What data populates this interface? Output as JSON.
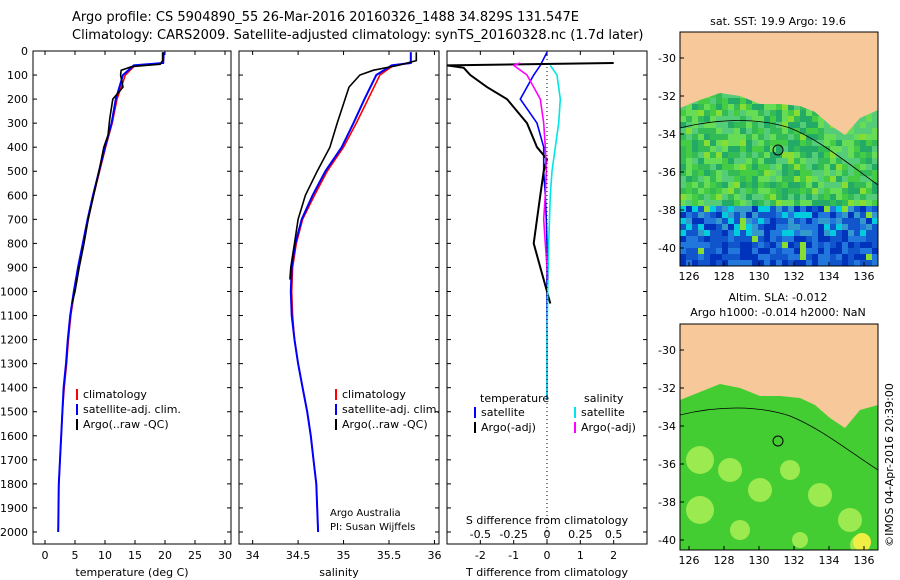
{
  "header": {
    "line1": "Argo profile: CS 5904890_55 26-Mar-2016 20160326_1488 34.829S 131.547E",
    "line2": "Climatology: CARS2009. Satellite-adjusted climatology: synTS_20160328.nc (1.7d later)"
  },
  "right_panels": {
    "top_title": "sat. SST: 19.9 Argo: 19.6",
    "bottom_title_1": "Altim. SLA: -0.012",
    "bottom_title_2": "Argo h1000: -0.014 h2000: NaN",
    "credit": "©IMOS 04-Apr-2016 20:39:00",
    "lon_ticks": [
      "126",
      "128",
      "130",
      "132",
      "134",
      "136"
    ],
    "lat_ticks": [
      "-30",
      "-32",
      "-34",
      "-36",
      "-38",
      "-40"
    ],
    "land_color": "#f7c99a"
  },
  "chart_data": [
    {
      "type": "line",
      "xlabel": "temperature (deg C)",
      "ylim": [
        2050,
        0
      ],
      "xlim": [
        -2,
        31
      ],
      "xticks": [
        0,
        5,
        10,
        15,
        20,
        25,
        30
      ],
      "yticks": [
        0,
        100,
        200,
        300,
        400,
        500,
        600,
        700,
        800,
        900,
        1000,
        1100,
        1200,
        1300,
        1400,
        1500,
        1600,
        1700,
        1800,
        1900,
        2000
      ],
      "legend": [
        "climatology",
        "satellite-adj. clim.",
        "Argo(..raw -QC)"
      ],
      "series": [
        {
          "name": "climatology",
          "color": "#ff0000",
          "x": [
            19.8,
            19.7,
            15.0,
            13.4,
            12.0,
            11.2,
            10.1,
            9.1,
            8.1,
            7.2,
            6.4,
            5.6,
            4.9,
            4.3,
            3.9,
            3.6,
            3.2,
            2.9,
            2.7,
            2.5,
            2.3,
            2.2
          ],
          "y": [
            5,
            50,
            60,
            100,
            200,
            300,
            400,
            500,
            600,
            700,
            800,
            900,
            1000,
            1100,
            1200,
            1300,
            1400,
            1500,
            1600,
            1700,
            1800,
            2000
          ]
        },
        {
          "name": "satellite-adj. clim.",
          "color": "#0000ff",
          "x": [
            19.8,
            19.7,
            14.8,
            13.0,
            11.8,
            11.1,
            10.0,
            9.0,
            8.0,
            7.1,
            6.3,
            5.5,
            4.8,
            4.2,
            3.8,
            3.5,
            3.1,
            2.9,
            2.7,
            2.5,
            2.3,
            2.2
          ],
          "y": [
            5,
            50,
            60,
            100,
            200,
            300,
            400,
            500,
            600,
            700,
            800,
            900,
            1000,
            1100,
            1200,
            1300,
            1400,
            1500,
            1600,
            1700,
            1800,
            2000
          ]
        },
        {
          "name": "Argo(..raw -QC)",
          "color": "#000000",
          "x": [
            19.6,
            19.6,
            19.2,
            14.5,
            12.7,
            12.6,
            13.0,
            11.3,
            10.8,
            10.5,
            9.8,
            9.0,
            8.1,
            7.2,
            6.5,
            5.7,
            5.0,
            4.5
          ],
          "y": [
            5,
            40,
            55,
            65,
            80,
            100,
            150,
            200,
            280,
            350,
            400,
            500,
            600,
            700,
            800,
            900,
            1000,
            1050
          ]
        }
      ]
    },
    {
      "type": "line",
      "xlabel": "salinity",
      "ylim": [
        2050,
        0
      ],
      "xlim": [
        33.85,
        36.05
      ],
      "xticks": [
        34,
        34.5,
        35,
        35.5,
        36
      ],
      "xtick_labels": [
        "34",
        "34.5",
        "35",
        "35.5",
        "36"
      ],
      "legend": [
        "climatology",
        "satellite-adj. clim.",
        "Argo(..raw -QC)"
      ],
      "series": [
        {
          "name": "climatology",
          "color": "#ff0000",
          "x": [
            35.74,
            35.74,
            35.55,
            35.4,
            35.27,
            35.14,
            35.0,
            34.82,
            34.68,
            34.55,
            34.48,
            34.44,
            34.43,
            34.44,
            34.46,
            34.5,
            34.55,
            34.6,
            34.64,
            34.67,
            34.7,
            34.72
          ],
          "y": [
            5,
            50,
            60,
            100,
            200,
            300,
            400,
            500,
            600,
            700,
            800,
            900,
            1000,
            1100,
            1200,
            1300,
            1400,
            1500,
            1600,
            1700,
            1800,
            2000
          ]
        },
        {
          "name": "satellite-adj. clim.",
          "color": "#0000ff",
          "x": [
            35.74,
            35.74,
            35.53,
            35.36,
            35.23,
            35.11,
            34.98,
            34.8,
            34.66,
            34.54,
            34.47,
            34.43,
            34.42,
            34.43,
            34.46,
            34.5,
            34.55,
            34.6,
            34.64,
            34.67,
            34.7,
            34.72
          ],
          "y": [
            5,
            50,
            60,
            100,
            200,
            300,
            400,
            500,
            600,
            700,
            800,
            900,
            1000,
            1100,
            1200,
            1300,
            1400,
            1500,
            1600,
            1700,
            1800,
            2000
          ]
        },
        {
          "name": "Argo(..raw -QC)",
          "color": "#000000",
          "x": [
            35.8,
            35.8,
            35.6,
            35.33,
            35.18,
            35.06,
            34.93,
            34.85,
            34.71,
            34.58,
            34.5,
            34.46,
            34.44,
            34.42,
            34.41
          ],
          "y": [
            5,
            40,
            60,
            80,
            100,
            150,
            300,
            400,
            500,
            600,
            700,
            800,
            850,
            900,
            950
          ]
        }
      ],
      "annotations": [
        "Argo Australia",
        "PI: Susan Wijffels"
      ]
    },
    {
      "type": "line",
      "xlabel": "T difference from climatology",
      "xlabel2": "S difference from climatology",
      "ylim": [
        2050,
        0
      ],
      "xlim": [
        -3,
        3
      ],
      "xticks": [
        -2,
        -1,
        0,
        1,
        2
      ],
      "xticks_S": [
        "-0.5",
        "-0.25",
        "0",
        "0.25",
        "0.5"
      ],
      "legend_T": {
        "title": "temperature",
        "items": [
          "satellite",
          "Argo(-adj)"
        ]
      },
      "legend_S": {
        "title": "salinity",
        "items": [
          "satellite",
          "Argo(-adj)"
        ]
      },
      "series": [
        {
          "name": "temperature satellite",
          "color": "#0000ff",
          "x": [
            0,
            -0.2,
            -0.4,
            -0.8,
            -0.3,
            -0.1,
            -0.1,
            -0.05,
            -0.02,
            0,
            0,
            0,
            0,
            0
          ],
          "y": [
            5,
            60,
            100,
            200,
            300,
            400,
            500,
            600,
            700,
            800,
            1000,
            1200,
            1400,
            1450
          ]
        },
        {
          "name": "temperature Argo(-adj)",
          "color": "#000000",
          "x": [
            2.0,
            -3.0,
            -2.5,
            -2.3,
            -1.8,
            -1.2,
            -0.6,
            -0.3,
            0.0,
            -0.1,
            -0.2,
            -0.3,
            -0.4,
            -0.2,
            0.0,
            0.1
          ],
          "y": [
            50,
            60,
            70,
            100,
            150,
            200,
            300,
            400,
            450,
            500,
            600,
            700,
            800,
            900,
            1000,
            1050
          ]
        },
        {
          "name": "salinity satellite",
          "color": "#00e5e5",
          "x": [
            0.1,
            0.3,
            0.4,
            0.35,
            0.25,
            0.15,
            0.1,
            0.05,
            0.02,
            0.0,
            0.0,
            0.0
          ],
          "y": [
            60,
            100,
            200,
            300,
            400,
            500,
            600,
            800,
            1000,
            1200,
            1400,
            1450
          ]
        },
        {
          "name": "salinity Argo(-adj)",
          "color": "#ff00ff",
          "x": [
            -0.8,
            -1.0,
            -0.6,
            -0.2,
            -0.1,
            -0.05,
            -0.02,
            -0.05,
            -0.1,
            -0.05,
            0.0,
            0.02
          ],
          "y": [
            50,
            60,
            100,
            200,
            300,
            400,
            500,
            600,
            700,
            800,
            900,
            950
          ]
        }
      ]
    }
  ]
}
